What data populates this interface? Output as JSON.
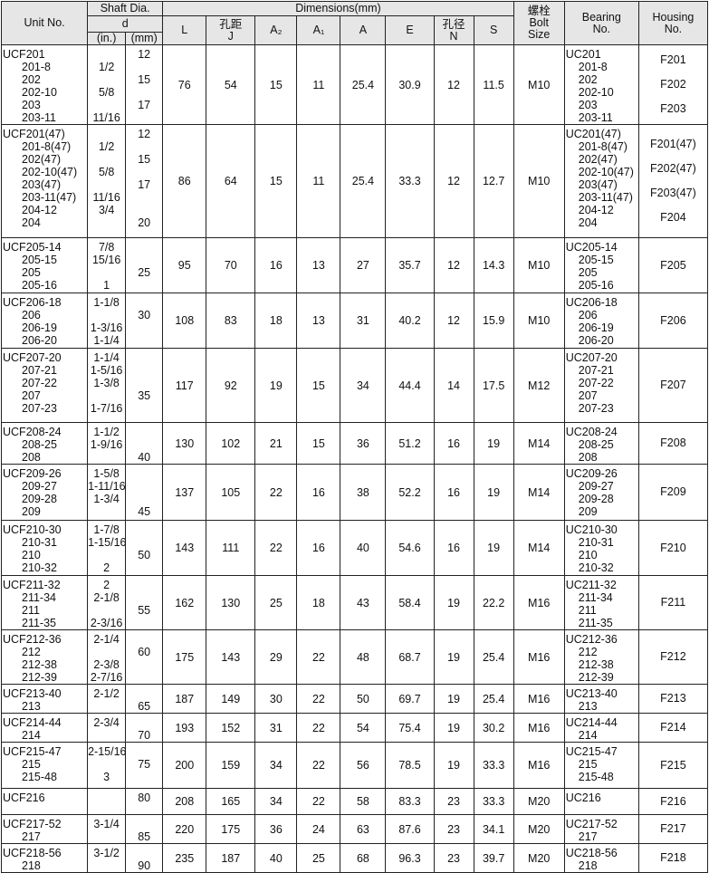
{
  "header": {
    "unit_no": "Unit No.",
    "shaft_dia": "Shaft Dia.",
    "d": "d",
    "in": "(in.)",
    "mm": "(mm)",
    "dimensions": "Dimensions(mm)",
    "L": "L",
    "J_cn": "孔距",
    "J": "J",
    "A2": "A₂",
    "A1": "A₁",
    "A": "A",
    "E": "E",
    "N_cn": "孔径",
    "N": "N",
    "S": "S",
    "bolt_cn": "螺栓",
    "bolt": "Bolt",
    "size": "Size",
    "bearing": "Bearing",
    "bearing_no": "No.",
    "housing": "Housing",
    "housing_no": "No."
  },
  "rows": [
    {
      "unit": [
        "UCF201",
        "201-8",
        "202",
        "202-10",
        "203",
        "203-11"
      ],
      "in": [
        "",
        "1/2",
        "",
        "5/8",
        "",
        "11/16"
      ],
      "mm": [
        "12",
        "",
        "15",
        "",
        "17",
        ""
      ],
      "L": "76",
      "J": "54",
      "A2": "15",
      "A1": "11",
      "A": "25.4",
      "E": "30.9",
      "N": "12",
      "S": "11.5",
      "bolt": "M10",
      "bearing": [
        "UC201",
        "201-8",
        "202",
        "202-10",
        "203",
        "203-11"
      ],
      "housing": [
        "F201",
        "F202",
        "F203"
      ]
    },
    {
      "unit": [
        "UCF201(47)",
        "201-8(47)",
        "202(47)",
        "202-10(47)",
        "203(47)",
        "203-11(47)",
        "204-12",
        "204"
      ],
      "in": [
        "",
        "1/2",
        "",
        "5/8",
        "",
        "11/16",
        "3/4",
        ""
      ],
      "mm": [
        "12",
        "",
        "15",
        "",
        "17",
        "",
        "",
        "20"
      ],
      "L": "86",
      "J": "64",
      "A2": "15",
      "A1": "11",
      "A": "25.4",
      "E": "33.3",
      "N": "12",
      "S": "12.7",
      "bolt": "M10",
      "bearing": [
        "UC201(47)",
        "201-8(47)",
        "202(47)",
        "202-10(47)",
        "203(47)",
        "203-11(47)",
        "204-12",
        "204"
      ],
      "housing": [
        "F201(47)",
        "F202(47)",
        "F203(47)",
        "F204"
      ]
    },
    {
      "unit": [
        "UCF205-14",
        "205-15",
        "205",
        "205-16"
      ],
      "in": [
        "7/8",
        "15/16",
        "",
        "1"
      ],
      "mm": [
        "",
        "",
        "25",
        ""
      ],
      "L": "95",
      "J": "70",
      "A2": "16",
      "A1": "13",
      "A": "27",
      "E": "35.7",
      "N": "12",
      "S": "14.3",
      "bolt": "M10",
      "bearing": [
        "UC205-14",
        "205-15",
        "205",
        "205-16"
      ],
      "housing": [
        "F205"
      ]
    },
    {
      "unit": [
        "UCF206-18",
        "206",
        "206-19",
        "206-20"
      ],
      "in": [
        "1-1/8",
        "",
        "1-3/16",
        "1-1/4"
      ],
      "mm": [
        "",
        "30",
        "",
        ""
      ],
      "L": "108",
      "J": "83",
      "A2": "18",
      "A1": "13",
      "A": "31",
      "E": "40.2",
      "N": "12",
      "S": "15.9",
      "bolt": "M10",
      "bearing": [
        "UC206-18",
        "206",
        "206-19",
        "206-20"
      ],
      "housing": [
        "F206"
      ]
    },
    {
      "unit": [
        "UCF207-20",
        "207-21",
        "207-22",
        "207",
        "207-23"
      ],
      "in": [
        "1-1/4",
        "1-5/16",
        "1-3/8",
        "",
        "1-7/16"
      ],
      "mm": [
        "",
        "",
        "",
        "35",
        ""
      ],
      "L": "117",
      "J": "92",
      "A2": "19",
      "A1": "15",
      "A": "34",
      "E": "44.4",
      "N": "14",
      "S": "17.5",
      "bolt": "M12",
      "bearing": [
        "UC207-20",
        "207-21",
        "207-22",
        "207",
        "207-23"
      ],
      "housing": [
        "F207"
      ]
    },
    {
      "unit": [
        "UCF208-24",
        "208-25",
        "208"
      ],
      "in": [
        "1-1/2",
        "1-9/16",
        ""
      ],
      "mm": [
        "",
        "",
        "40"
      ],
      "L": "130",
      "J": "102",
      "A2": "21",
      "A1": "15",
      "A": "36",
      "E": "51.2",
      "N": "16",
      "S": "19",
      "bolt": "M14",
      "bearing": [
        "UC208-24",
        "208-25",
        "208"
      ],
      "housing": [
        "F208"
      ]
    },
    {
      "unit": [
        "UCF209-26",
        "209-27",
        "209-28",
        "209"
      ],
      "in": [
        "1-5/8",
        "1-11/16",
        "1-3/4",
        ""
      ],
      "mm": [
        "",
        "",
        "",
        "45"
      ],
      "L": "137",
      "J": "105",
      "A2": "22",
      "A1": "16",
      "A": "38",
      "E": "52.2",
      "N": "16",
      "S": "19",
      "bolt": "M14",
      "bearing": [
        "UC209-26",
        "209-27",
        "209-28",
        "209"
      ],
      "housing": [
        "F209"
      ]
    },
    {
      "unit": [
        "UCF210-30",
        "210-31",
        "210",
        "210-32"
      ],
      "in": [
        "1-7/8",
        "1-15/16",
        "",
        "2"
      ],
      "mm": [
        "",
        "",
        "50",
        ""
      ],
      "L": "143",
      "J": "111",
      "A2": "22",
      "A1": "16",
      "A": "40",
      "E": "54.6",
      "N": "16",
      "S": "19",
      "bolt": "M14",
      "bearing": [
        "UC210-30",
        "210-31",
        "210",
        "210-32"
      ],
      "housing": [
        "F210"
      ]
    },
    {
      "unit": [
        "UCF211-32",
        "211-34",
        "211",
        "211-35"
      ],
      "in": [
        "2",
        "2-1/8",
        "",
        "2-3/16"
      ],
      "mm": [
        "",
        "",
        "55",
        ""
      ],
      "L": "162",
      "J": "130",
      "A2": "25",
      "A1": "18",
      "A": "43",
      "E": "58.4",
      "N": "19",
      "S": "22.2",
      "bolt": "M16",
      "bearing": [
        "UC211-32",
        "211-34",
        "211",
        "211-35"
      ],
      "housing": [
        "F211"
      ]
    },
    {
      "unit": [
        "UCF212-36",
        "212",
        "212-38",
        "212-39"
      ],
      "in": [
        "2-1/4",
        "",
        "2-3/8",
        "2-7/16"
      ],
      "mm": [
        "",
        "60",
        "",
        ""
      ],
      "L": "175",
      "J": "143",
      "A2": "29",
      "A1": "22",
      "A": "48",
      "E": "68.7",
      "N": "19",
      "S": "25.4",
      "bolt": "M16",
      "bearing": [
        "UC212-36",
        "212",
        "212-38",
        "212-39"
      ],
      "housing": [
        "F212"
      ]
    },
    {
      "unit": [
        "UCF213-40",
        "213"
      ],
      "in": [
        "2-1/2",
        ""
      ],
      "mm": [
        "",
        "65"
      ],
      "L": "187",
      "J": "149",
      "A2": "30",
      "A1": "22",
      "A": "50",
      "E": "69.7",
      "N": "19",
      "S": "25.4",
      "bolt": "M16",
      "bearing": [
        "UC213-40",
        "213"
      ],
      "housing": [
        "F213"
      ]
    },
    {
      "unit": [
        "UCF214-44",
        "214"
      ],
      "in": [
        "2-3/4",
        ""
      ],
      "mm": [
        "",
        "70"
      ],
      "L": "193",
      "J": "152",
      "A2": "31",
      "A1": "22",
      "A": "54",
      "E": "75.4",
      "N": "19",
      "S": "30.2",
      "bolt": "M16",
      "bearing": [
        "UC214-44",
        "214"
      ],
      "housing": [
        "F214"
      ]
    },
    {
      "unit": [
        "UCF215-47",
        "215",
        "215-48"
      ],
      "in": [
        "2-15/16",
        "",
        "3"
      ],
      "mm": [
        "",
        "75",
        ""
      ],
      "L": "200",
      "J": "159",
      "A2": "34",
      "A1": "22",
      "A": "56",
      "E": "78.5",
      "N": "19",
      "S": "33.3",
      "bolt": "M16",
      "bearing": [
        "UC215-47",
        "215",
        "215-48"
      ],
      "housing": [
        "F215"
      ]
    },
    {
      "unit": [
        "UCF216"
      ],
      "in": [
        ""
      ],
      "mm": [
        "80"
      ],
      "L": "208",
      "J": "165",
      "A2": "34",
      "A1": "22",
      "A": "58",
      "E": "83.3",
      "N": "23",
      "S": "33.3",
      "bolt": "M20",
      "bearing": [
        "UC216"
      ],
      "housing": [
        "F216"
      ]
    },
    {
      "unit": [
        "UCF217-52",
        "217"
      ],
      "in": [
        "3-1/4",
        ""
      ],
      "mm": [
        "",
        "85"
      ],
      "L": "220",
      "J": "175",
      "A2": "36",
      "A1": "24",
      "A": "63",
      "E": "87.6",
      "N": "23",
      "S": "34.1",
      "bolt": "M20",
      "bearing": [
        "UC217-52",
        "217"
      ],
      "housing": [
        "F217"
      ]
    },
    {
      "unit": [
        "UCF218-56",
        "218"
      ],
      "in": [
        "3-1/2",
        ""
      ],
      "mm": [
        "",
        "90"
      ],
      "L": "235",
      "J": "187",
      "A2": "40",
      "A1": "25",
      "A": "68",
      "E": "96.3",
      "N": "23",
      "S": "39.7",
      "bolt": "M20",
      "bearing": [
        "UC218-56",
        "218"
      ],
      "housing": [
        "F218"
      ]
    }
  ]
}
